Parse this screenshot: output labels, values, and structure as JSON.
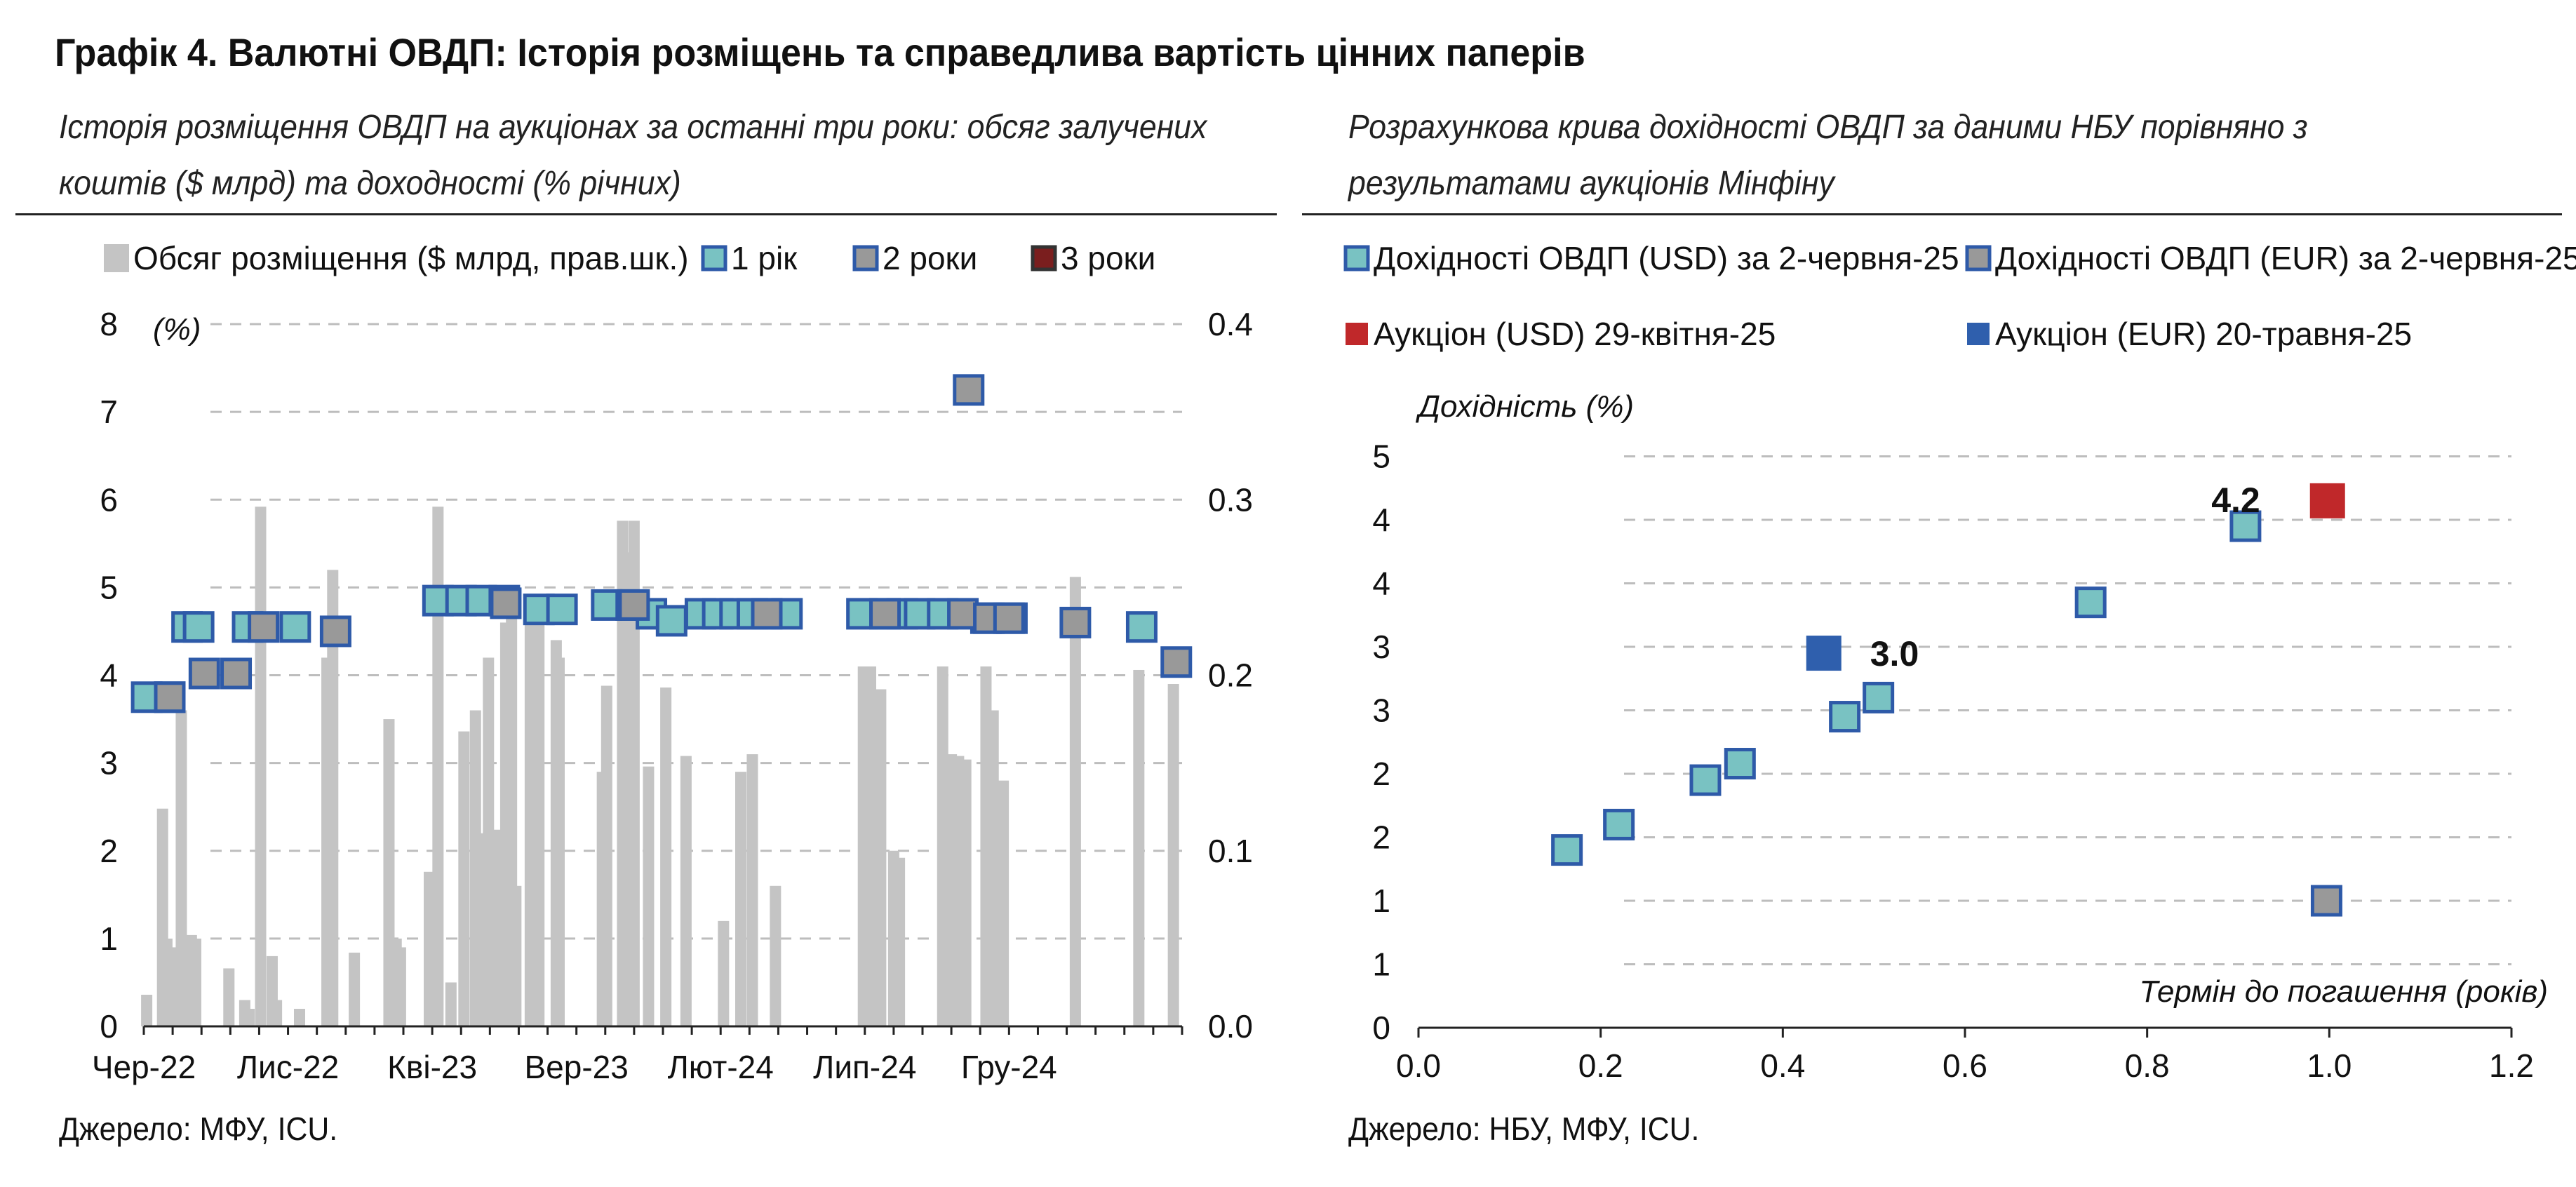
{
  "title": "Графік 4. Валютні ОВДП: Історія розміщень та справедлива вартість цінних паперів",
  "left": {
    "subtitle_line1": "Історія розміщення ОВДП на аукціонах за останні три роки: обсяг залучених",
    "subtitle_line2": "коштів ($ млрд) та доходності (% річних)",
    "source": "Джерело: МФУ, ICU."
  },
  "right": {
    "subtitle_line1": "Розрахункова крива дохідності ОВДП за даними НБУ порівняно з",
    "subtitle_line2": "результатами аукціонів Мінфіну",
    "source": "Джерело: НБУ, МФУ, ICU."
  },
  "colors": {
    "bar": "#c4c4c4",
    "marker_1y": "#79c2c2",
    "marker_2y": "#999999",
    "marker_3y": "#7a1e1e",
    "marker_border": "#2e5aa8",
    "auction_usd": "#c0282a",
    "auction_eur": "#2f5fad",
    "grid": "#bdbdbd"
  },
  "chart_data": [
    {
      "type": "bar",
      "left_axis_unit": "(%)",
      "ylim_left": [
        0,
        8
      ],
      "ylim_right": [
        0,
        0.4
      ],
      "yticks_left": [
        "0",
        "1",
        "2",
        "3",
        "4",
        "5",
        "6",
        "7",
        "8"
      ],
      "yticks_right": [
        "0.0",
        "0.1",
        "0.2",
        "0.3",
        "0.4"
      ],
      "xlim": [
        0,
        36
      ],
      "xticks": [
        {
          "x": 0,
          "label": "Чер-22"
        },
        {
          "x": 5,
          "label": "Лис-22"
        },
        {
          "x": 10,
          "label": "Кві-23"
        },
        {
          "x": 15,
          "label": "Вер-23"
        },
        {
          "x": 20,
          "label": "Лют-24"
        },
        {
          "x": 25,
          "label": "Лип-24"
        },
        {
          "x": 30,
          "label": "Гру-24"
        }
      ],
      "legend": [
        {
          "label": "Обсяг розміщення ($ млрд, прав.шк.)",
          "kind": "bar"
        },
        {
          "label": "1 рік",
          "kind": "1y"
        },
        {
          "label": "2 роки",
          "kind": "2y"
        },
        {
          "label": "3 роки",
          "kind": "3y"
        }
      ],
      "bars": [
        {
          "x": 0.1,
          "v": 0.018
        },
        {
          "x": 0.65,
          "v": 0.124
        },
        {
          "x": 0.8,
          "v": 0.05
        },
        {
          "x": 1.05,
          "v": 0.045
        },
        {
          "x": 1.3,
          "v": 0.18
        },
        {
          "x": 1.65,
          "v": 0.052
        },
        {
          "x": 1.8,
          "v": 0.05
        },
        {
          "x": 2.95,
          "v": 0.033
        },
        {
          "x": 3.5,
          "v": 0.015
        },
        {
          "x": 3.65,
          "v": 0.01
        },
        {
          "x": 4.05,
          "v": 0.296
        },
        {
          "x": 4.45,
          "v": 0.04
        },
        {
          "x": 4.6,
          "v": 0.015
        },
        {
          "x": 5.4,
          "v": 0.01
        },
        {
          "x": 6.35,
          "v": 0.21
        },
        {
          "x": 6.55,
          "v": 0.26
        },
        {
          "x": 7.3,
          "v": 0.042
        },
        {
          "x": 8.5,
          "v": 0.175
        },
        {
          "x": 8.75,
          "v": 0.05
        },
        {
          "x": 8.9,
          "v": 0.045
        },
        {
          "x": 9.9,
          "v": 0.088
        },
        {
          "x": 10.2,
          "v": 0.296
        },
        {
          "x": 10.65,
          "v": 0.025
        },
        {
          "x": 11.1,
          "v": 0.168
        },
        {
          "x": 11.5,
          "v": 0.18
        },
        {
          "x": 11.7,
          "v": 0.11
        },
        {
          "x": 11.95,
          "v": 0.21
        },
        {
          "x": 12.2,
          "v": 0.112
        },
        {
          "x": 12.9,
          "v": 0.08
        },
        {
          "x": 12.55,
          "v": 0.23
        },
        {
          "x": 12.75,
          "v": 0.25
        },
        {
          "x": 13.4,
          "v": 0.234
        },
        {
          "x": 13.7,
          "v": 0.235
        },
        {
          "x": 14.3,
          "v": 0.22
        },
        {
          "x": 14.4,
          "v": 0.21
        },
        {
          "x": 15.9,
          "v": 0.145
        },
        {
          "x": 16.05,
          "v": 0.194
        },
        {
          "x": 16.6,
          "v": 0.288
        },
        {
          "x": 16.8,
          "v": 0.27
        },
        {
          "x": 17.0,
          "v": 0.288
        },
        {
          "x": 17.5,
          "v": 0.148
        },
        {
          "x": 18.1,
          "v": 0.193
        },
        {
          "x": 18.8,
          "v": 0.154
        },
        {
          "x": 20.1,
          "v": 0.06
        },
        {
          "x": 20.7,
          "v": 0.145
        },
        {
          "x": 21.1,
          "v": 0.155
        },
        {
          "x": 21.9,
          "v": 0.08
        },
        {
          "x": 24.95,
          "v": 0.205
        },
        {
          "x": 25.2,
          "v": 0.205
        },
        {
          "x": 25.55,
          "v": 0.192
        },
        {
          "x": 26.0,
          "v": 0.1
        },
        {
          "x": 26.2,
          "v": 0.096
        },
        {
          "x": 27.7,
          "v": 0.205
        },
        {
          "x": 28.0,
          "v": 0.155
        },
        {
          "x": 28.25,
          "v": 0.154
        },
        {
          "x": 28.5,
          "v": 0.152
        },
        {
          "x": 29.2,
          "v": 0.205
        },
        {
          "x": 29.45,
          "v": 0.18
        },
        {
          "x": 29.8,
          "v": 0.14
        },
        {
          "x": 32.3,
          "v": 0.256
        },
        {
          "x": 34.5,
          "v": 0.203
        },
        {
          "x": 35.7,
          "v": 0.195
        }
      ],
      "series": [
        {
          "kind": "1y",
          "points": [
            {
              "x": 0.1,
              "y": 3.75
            },
            {
              "x": 0.9,
              "y": 3.75
            },
            {
              "x": 1.5,
              "y": 4.55
            },
            {
              "x": 1.9,
              "y": 4.55
            },
            {
              "x": 3.6,
              "y": 4.55
            },
            {
              "x": 5.25,
              "y": 4.55
            },
            {
              "x": 10.2,
              "y": 4.85
            },
            {
              "x": 11.0,
              "y": 4.85
            },
            {
              "x": 11.7,
              "y": 4.85
            },
            {
              "x": 12.5,
              "y": 4.85
            },
            {
              "x": 13.7,
              "y": 4.75
            },
            {
              "x": 14.5,
              "y": 4.75
            },
            {
              "x": 16.05,
              "y": 4.8
            },
            {
              "x": 16.9,
              "y": 4.8
            },
            {
              "x": 17.6,
              "y": 4.7
            },
            {
              "x": 18.3,
              "y": 4.62
            },
            {
              "x": 19.3,
              "y": 4.7
            },
            {
              "x": 19.9,
              "y": 4.7
            },
            {
              "x": 20.5,
              "y": 4.7
            },
            {
              "x": 21.1,
              "y": 4.7
            },
            {
              "x": 21.6,
              "y": 4.7
            },
            {
              "x": 22.3,
              "y": 4.7
            },
            {
              "x": 24.9,
              "y": 4.7
            },
            {
              "x": 25.7,
              "y": 4.7
            },
            {
              "x": 26.3,
              "y": 4.7
            },
            {
              "x": 26.9,
              "y": 4.7
            },
            {
              "x": 27.7,
              "y": 4.7
            },
            {
              "x": 29.2,
              "y": 4.65
            },
            {
              "x": 30.1,
              "y": 4.65
            },
            {
              "x": 34.6,
              "y": 4.55
            }
          ]
        },
        {
          "kind": "2y",
          "points": [
            {
              "x": 0.9,
              "y": 3.75
            },
            {
              "x": 2.1,
              "y": 4.02
            },
            {
              "x": 3.2,
              "y": 4.02
            },
            {
              "x": 4.15,
              "y": 4.55
            },
            {
              "x": 6.65,
              "y": 4.5
            },
            {
              "x": 12.55,
              "y": 4.82
            },
            {
              "x": 17.0,
              "y": 4.8
            },
            {
              "x": 21.6,
              "y": 4.7
            },
            {
              "x": 25.7,
              "y": 4.7
            },
            {
              "x": 28.4,
              "y": 4.7
            },
            {
              "x": 29.3,
              "y": 4.65
            },
            {
              "x": 30.0,
              "y": 4.65
            },
            {
              "x": 28.6,
              "y": 7.25
            },
            {
              "x": 32.3,
              "y": 4.6
            },
            {
              "x": 35.8,
              "y": 4.15
            }
          ]
        }
      ]
    },
    {
      "type": "scatter",
      "xlabel": "Термін до погашення (років)",
      "ylabel": "Дохідність (%)",
      "xlim": [
        0,
        1.2
      ],
      "ylim": [
        0,
        5
      ],
      "xticks": [
        "0.0",
        "0.2",
        "0.4",
        "0.6",
        "0.8",
        "1.0",
        "1.2"
      ],
      "yticks": [
        "0",
        "1",
        "1",
        "2",
        "2",
        "3",
        "3",
        "4",
        "4",
        "5"
      ],
      "legend": [
        {
          "label": "Дохідності ОВДП (USD) за 2-червня-25",
          "kind": "usd"
        },
        {
          "label": "Дохідності ОВДП (EUR) за 2-червня-25",
          "kind": "eur"
        },
        {
          "label": "Аукціон (USD) 29-квітня-25",
          "kind": "auction_usd"
        },
        {
          "label": "Аукціон (EUR) 20-травня-25",
          "kind": "auction_eur"
        }
      ],
      "series": [
        {
          "kind": "usd",
          "points": [
            {
              "x": 0.163,
              "y": 1.4
            },
            {
              "x": 0.22,
              "y": 1.6
            },
            {
              "x": 0.315,
              "y": 1.95
            },
            {
              "x": 0.353,
              "y": 2.08
            },
            {
              "x": 0.468,
              "y": 2.45
            },
            {
              "x": 0.505,
              "y": 2.6
            },
            {
              "x": 0.738,
              "y": 3.35
            },
            {
              "x": 0.908,
              "y": 3.95
            }
          ]
        },
        {
          "kind": "eur",
          "points": [
            {
              "x": 0.997,
              "y": 1.0
            }
          ]
        },
        {
          "kind": "auction_usd",
          "points": [
            {
              "x": 0.998,
              "y": 4.15
            }
          ],
          "label": "4.2"
        },
        {
          "kind": "auction_eur",
          "points": [
            {
              "x": 0.445,
              "y": 2.95
            }
          ],
          "label": "3.0"
        }
      ]
    }
  ]
}
